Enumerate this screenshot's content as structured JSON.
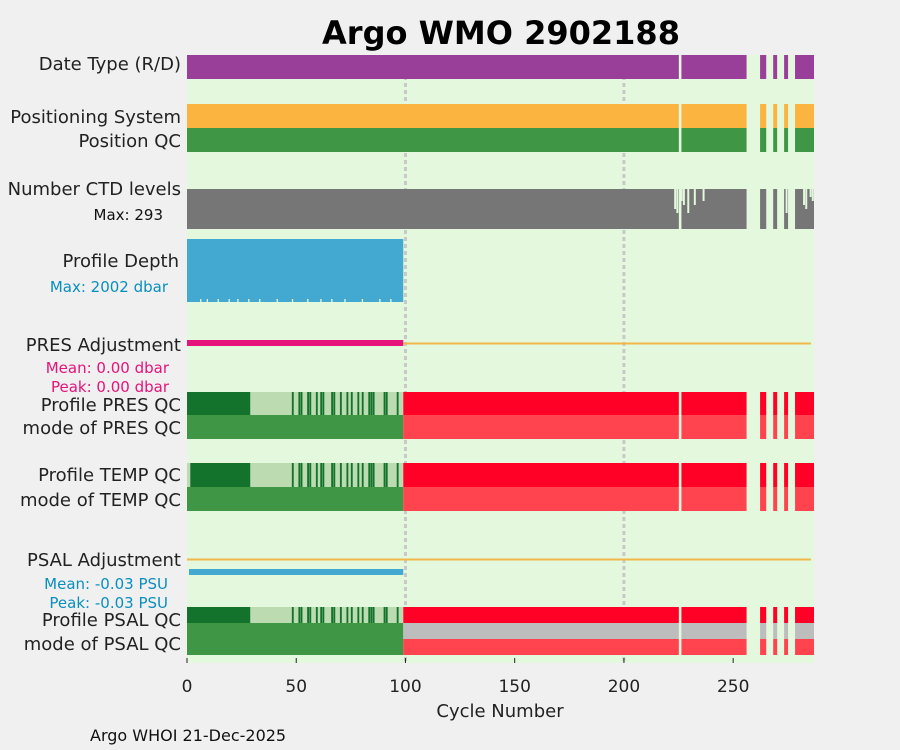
{
  "chart_data": {
    "type": "timeline",
    "title": "Argo WMO 2902188",
    "xlabel": "Cycle Number",
    "xlim": [
      0,
      287
    ],
    "xticks": [
      0,
      50,
      100,
      150,
      200,
      250
    ],
    "gridlines_x": [
      100,
      200
    ],
    "footer": "Argo WHOI 21-Dec-2025",
    "colors": {
      "background": "#e4f8de",
      "page": "#f0f0f0",
      "title": "#0a8ebc",
      "date_type": "#993e99",
      "positioning": "#fbb440",
      "good": "#3f9745",
      "good_dark": "#13722b",
      "good_light": "#bcdbb0",
      "bad": "#ff0026",
      "bad_light": "#ff4450",
      "missing": "#bdbdbd",
      "ctd": "#767676",
      "depth": "#43a9d0",
      "pres_adj": "#e5137a",
      "psal_adj": "#43a9d0",
      "zero_line": "#f2b74a",
      "grid": "#c8c8c8"
    },
    "gap_cycles": [
      226,
      257,
      258,
      259,
      260,
      261,
      262,
      266,
      267,
      268,
      271,
      272,
      273,
      276,
      277,
      278
    ],
    "rows": [
      {
        "id": "date-type",
        "label": "Date Type (R/D)",
        "color": "date_type"
      },
      {
        "id": "positioning",
        "label": "Positioning System",
        "color": "positioning"
      },
      {
        "id": "position-qc",
        "label": "Position QC",
        "color": "good"
      },
      {
        "id": "ctd-levels",
        "label": "Number CTD levels",
        "note": "Max: 293",
        "color": "ctd"
      },
      {
        "id": "profile-depth",
        "label": "Profile Depth",
        "note": "Max: 2002 dbar",
        "color": "depth"
      },
      {
        "id": "pres-adj",
        "label": "PRES Adjustment",
        "note_mean": "Mean: 0.00 dbar",
        "note_peak": "Peak: 0.00 dbar",
        "color": "pres_adj"
      },
      {
        "id": "pres-qc",
        "label": "Profile PRES QC",
        "color": "bad"
      },
      {
        "id": "pres-mode",
        "label": "mode of PRES QC",
        "color": "bad_light"
      },
      {
        "id": "temp-qc",
        "label": "Profile TEMP QC",
        "color": "bad"
      },
      {
        "id": "temp-mode",
        "label": "mode of TEMP QC",
        "color": "bad_light"
      },
      {
        "id": "psal-adj",
        "label": "PSAL Adjustment",
        "note_mean": "Mean: -0.03 PSU",
        "note_peak": "Peak: -0.03 PSU",
        "color": "psal_adj"
      },
      {
        "id": "psal-qc",
        "label": "Profile PSAL QC",
        "color": "bad"
      },
      {
        "id": "psal-mode",
        "label": "mode of PSAL QC",
        "color": "bad_light"
      }
    ],
    "profile_depth_end_cycle": 99,
    "adjustment_end_cycle": 99,
    "pres_qc_segments": [
      {
        "from": 0,
        "to": 29,
        "grade": "good_dark"
      },
      {
        "from": 29,
        "to": 99,
        "grade": "good_light"
      }
    ],
    "temp_qc_segments": [
      {
        "from": 0,
        "to": 1.5,
        "grade": "good_light"
      },
      {
        "from": 1.5,
        "to": 29,
        "grade": "good_dark"
      },
      {
        "from": 29,
        "to": 99,
        "grade": "good_light"
      }
    ],
    "qc_dark_cycles": [
      48,
      51,
      52,
      55,
      56,
      59,
      61,
      62,
      66,
      67,
      70,
      73,
      75,
      78,
      80,
      83,
      84,
      85,
      90,
      91,
      96
    ],
    "psal_mode_split": {
      "upper": "missing",
      "lower": "bad_light"
    },
    "ctd_dropouts": [
      223,
      224,
      226,
      227,
      229,
      232,
      236,
      266,
      274,
      282,
      283,
      285,
      286
    ],
    "depth_dropouts": [
      6,
      9,
      14,
      19,
      23,
      28,
      33,
      41,
      48,
      55,
      61,
      66,
      72,
      80,
      88,
      93
    ]
  }
}
